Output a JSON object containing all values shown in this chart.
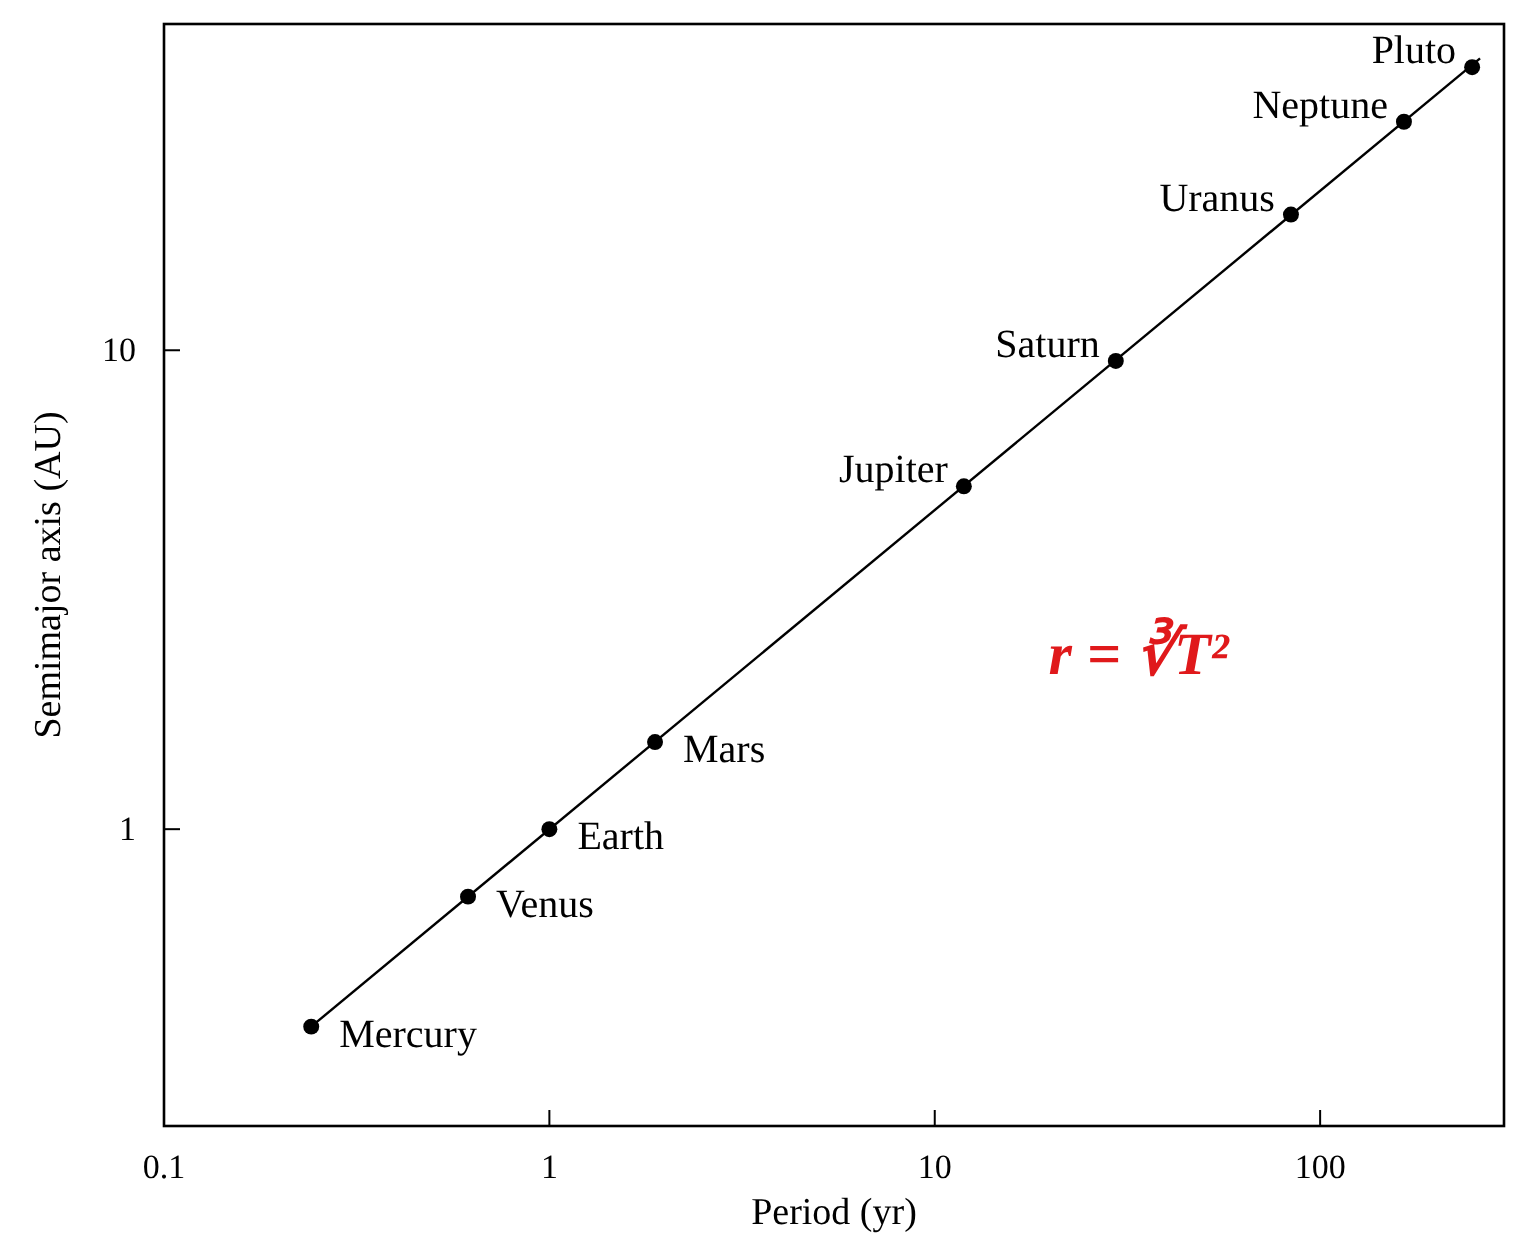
{
  "chart_data": {
    "type": "scatter",
    "xlabel": "Period (yr)",
    "ylabel": "Semimajor axis (AU)",
    "log": "xy",
    "grid": false,
    "xlim": [
      0.1,
      300
    ],
    "xticks": [
      0.1,
      1,
      10,
      100
    ],
    "ylim": [
      0.24,
      48
    ],
    "yticks": [
      1,
      10
    ],
    "series": [
      {
        "marker": "circle",
        "color": "#000000",
        "x": [
          0.241,
          0.615,
          1,
          1.88,
          11.9,
          29.5,
          84,
          165,
          248
        ],
        "values": [
          0.387,
          0.723,
          1,
          1.52,
          5.2,
          9.5,
          19.2,
          30,
          39
        ]
      },
      {
        "type": "line",
        "marker": "none",
        "color": "#000000",
        "line_style": "solid",
        "x": [
          0.24,
          260
        ],
        "values": [
          0.386,
          40.7
        ]
      }
    ],
    "annotations": [
      {
        "text": "Mercury",
        "x": 0.241,
        "y": 0.387
      },
      {
        "text": "Venus",
        "x": 0.615,
        "y": 0.723
      },
      {
        "text": "Earth",
        "x": 1,
        "y": 1
      },
      {
        "text": "Mars",
        "x": 1.88,
        "y": 1.52
      },
      {
        "text": "Jupiter",
        "x": 11.9,
        "y": 5.2
      },
      {
        "text": "Saturn",
        "x": 29.5,
        "y": 9.5
      },
      {
        "text": "Uranus",
        "x": 84,
        "y": 19.2
      },
      {
        "text": "Neptune",
        "x": 165,
        "y": 30
      },
      {
        "text": "Pluto",
        "x": 248,
        "y": 39
      },
      "r = ∛T²"
    ]
  }
}
